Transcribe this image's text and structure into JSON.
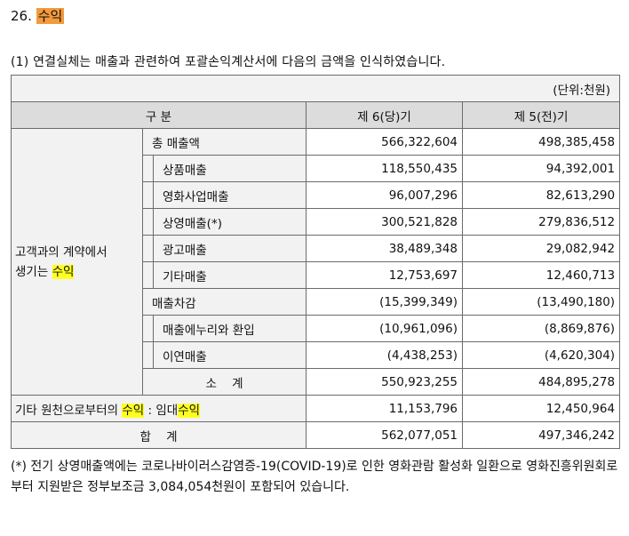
{
  "heading": {
    "number": "26.",
    "title": "수익"
  },
  "intro": "(1) 연결실체는 매출과 관련하여 포괄손익계산서에 다음의 금액을 인식하였습니다.",
  "table": {
    "unit": "(단위:천원)",
    "col_header": "구 분",
    "col_current": "제 6(당)기",
    "col_prior": "제 5(전)기",
    "category_line1": "고객과의 계약에서",
    "category_line2_prefix": "생기는 ",
    "category_line2_hl": "수익",
    "rows": [
      {
        "label": "총 매출액",
        "current": "566,322,604",
        "prior": "498,385,458"
      },
      {
        "label": "상품매출",
        "current": "118,550,435",
        "prior": "94,392,001"
      },
      {
        "label": "영화사업매출",
        "current": "96,007,296",
        "prior": "82,613,290"
      },
      {
        "label": "상영매출(*)",
        "current": "300,521,828",
        "prior": "279,836,512"
      },
      {
        "label": "광고매출",
        "current": "38,489,348",
        "prior": "29,082,942"
      },
      {
        "label": "기타매출",
        "current": "12,753,697",
        "prior": "12,460,713"
      },
      {
        "label": "매출차감",
        "current": "(15,399,349)",
        "prior": "(13,490,180)"
      },
      {
        "label": "매출에누리와 환입",
        "current": "(10,961,096)",
        "prior": "(8,869,876)"
      },
      {
        "label": "이연매출",
        "current": "(4,438,253)",
        "prior": "(4,620,304)"
      },
      {
        "label": "소    계",
        "current": "550,923,255",
        "prior": "484,895,278"
      }
    ],
    "other": {
      "prefix": "기타 원천으로부터의 ",
      "hl1": "수익",
      "middle": " : 임대",
      "hl2": "수익",
      "current": "11,153,796",
      "prior": "12,450,964"
    },
    "total": {
      "label": "합    계",
      "current": "562,077,051",
      "prior": "497,346,242"
    }
  },
  "note": "(*) 전기 상영매출액에는 코로나바이러스감염증-19(COVID-19)로 인한 영화관람 활성화 일환으로 영화진흥위원회로부터 지원받은 정부보조금 3,084,054천원이 포함되어 있습니다."
}
